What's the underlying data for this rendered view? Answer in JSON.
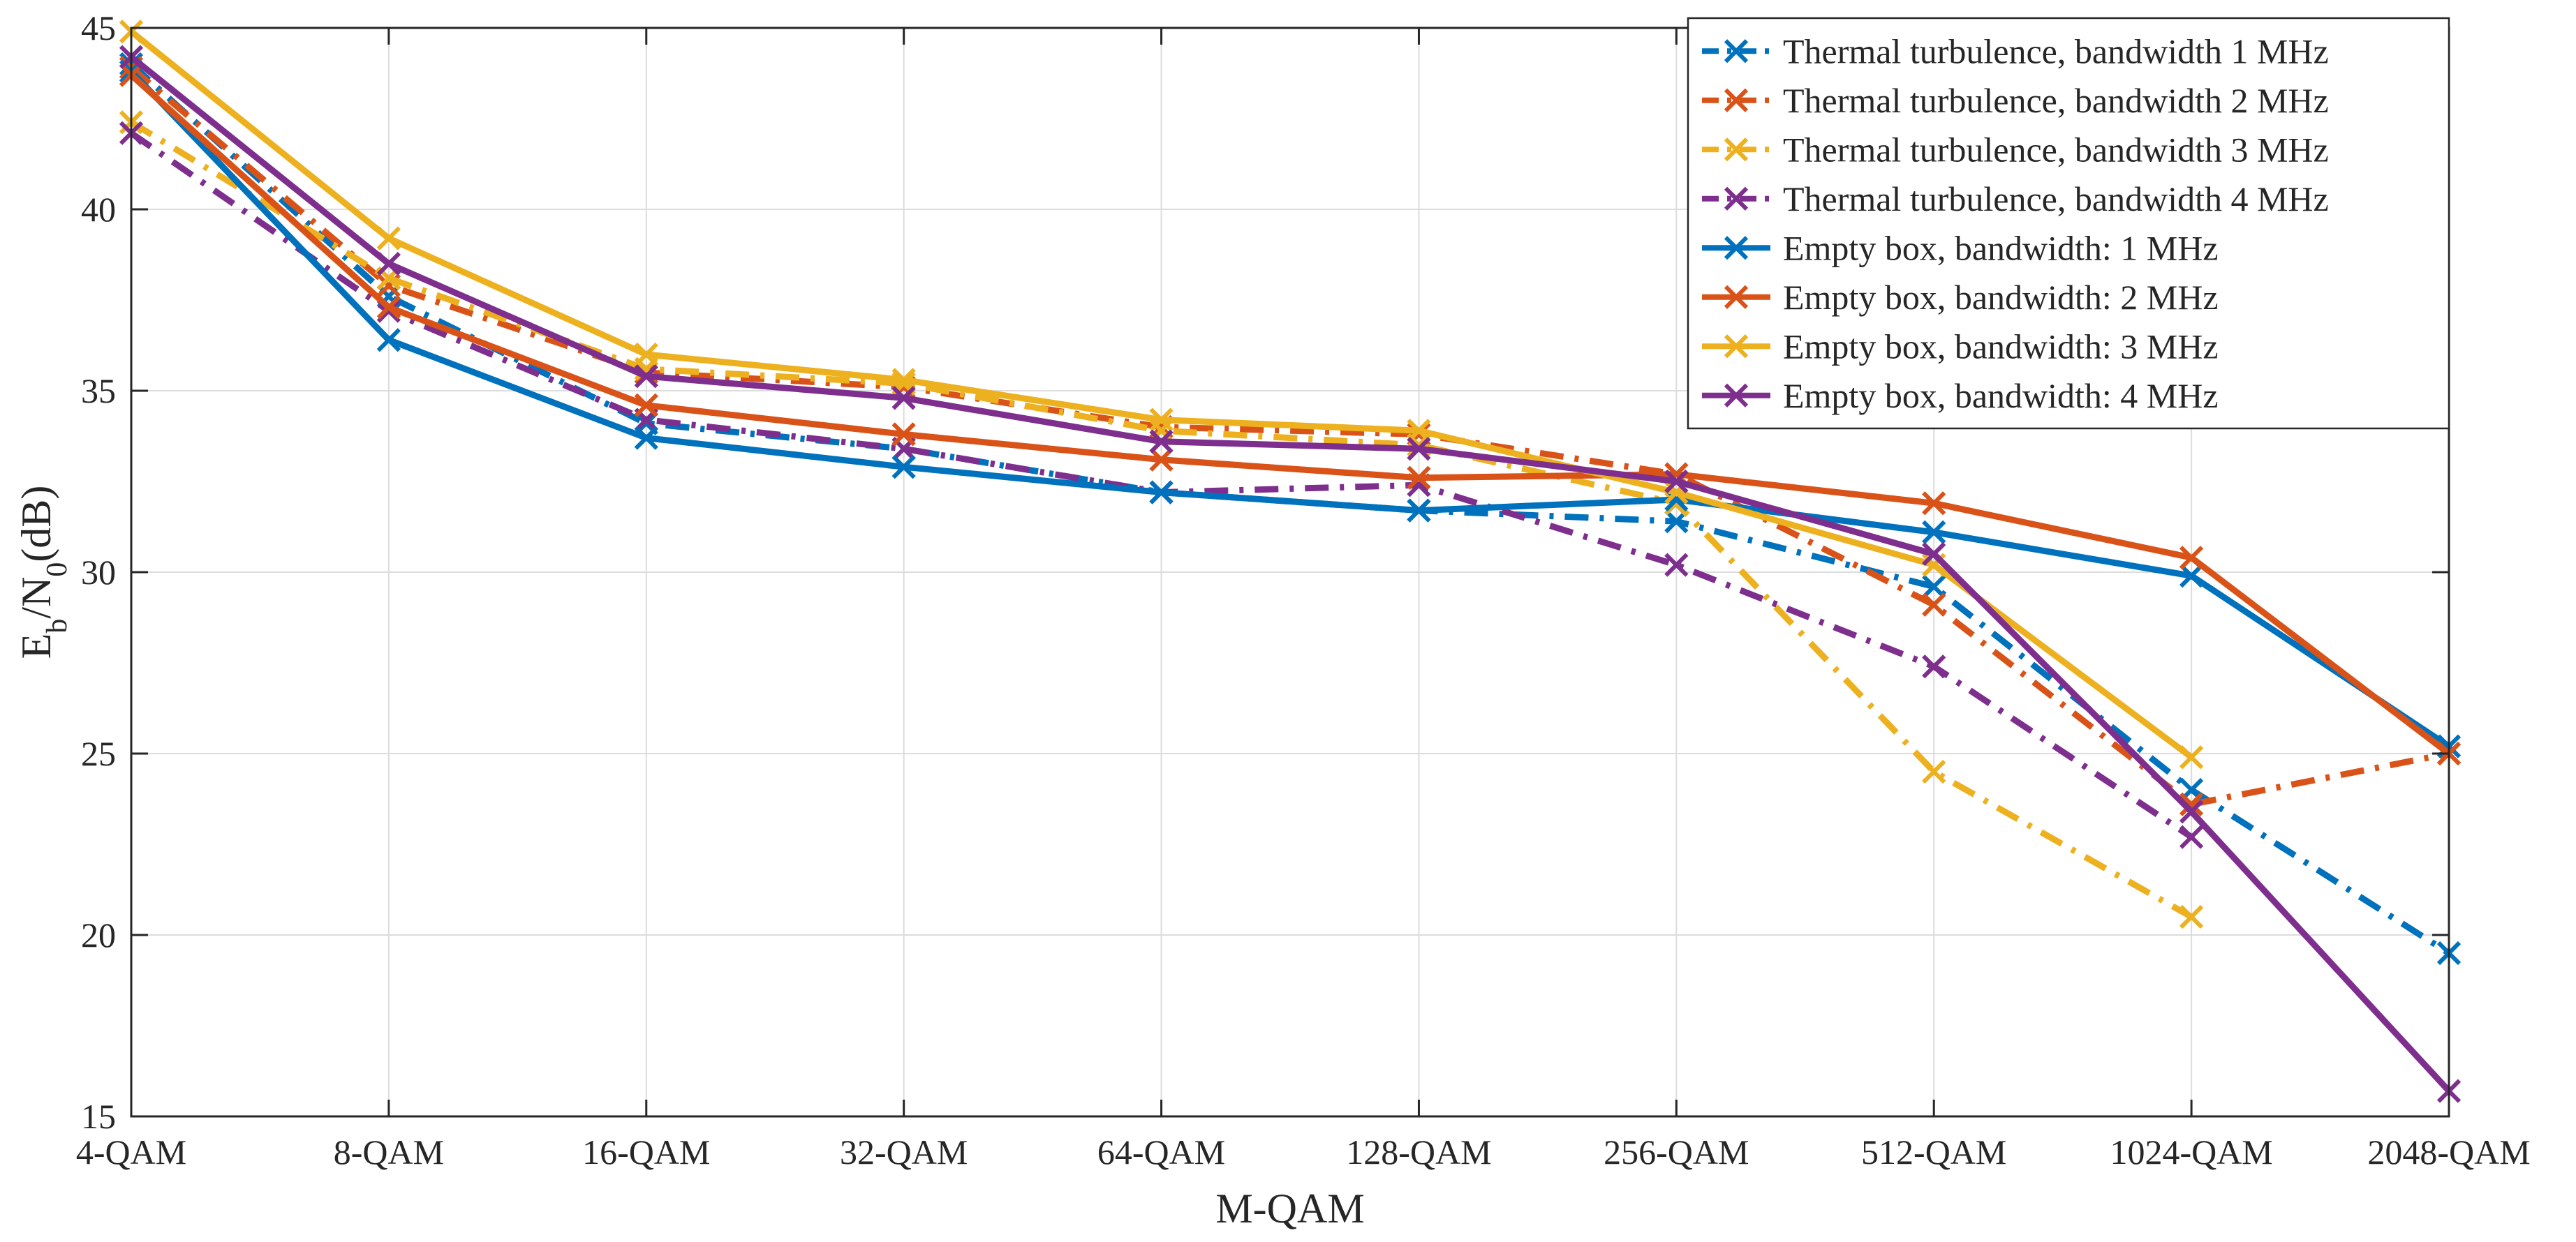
{
  "chart_data": {
    "type": "line",
    "title": "",
    "xlabel": "M-QAM",
    "ylabel": {
      "base": "E",
      "sub1": "b",
      "mid": "/N",
      "sub2": "0",
      "tail": "(dB)"
    },
    "categories": [
      "4-QAM",
      "8-QAM",
      "16-QAM",
      "32-QAM",
      "64-QAM",
      "128-QAM",
      "256-QAM",
      "512-QAM",
      "1024-QAM",
      "2048-QAM"
    ],
    "ylim": [
      15,
      45
    ],
    "yticks": [
      15,
      20,
      25,
      30,
      35,
      40,
      45
    ],
    "grid": true,
    "legend_position": "top-right",
    "series": [
      {
        "name": "Thermal turbulence, bandwidth 1 MHz",
        "color": "#0072BD",
        "style": "dashdot",
        "marker": "x",
        "values": [
          44.0,
          37.6,
          34.1,
          33.4,
          32.2,
          31.7,
          31.4,
          29.6,
          24.0,
          19.5
        ]
      },
      {
        "name": "Thermal turbulence, bandwidth 2 MHz",
        "color": "#D95319",
        "style": "dashdot",
        "marker": "x",
        "values": [
          43.9,
          37.9,
          35.5,
          35.1,
          34.0,
          33.8,
          32.7,
          29.1,
          23.6,
          25.0
        ]
      },
      {
        "name": "Thermal turbulence, bandwidth 3 MHz",
        "color": "#EDB120",
        "style": "dashdot",
        "marker": "x",
        "values": [
          42.4,
          38.1,
          35.6,
          35.2,
          33.9,
          33.5,
          31.9,
          24.5,
          20.5,
          null
        ]
      },
      {
        "name": "Thermal turbulence, bandwidth 4 MHz",
        "color": "#7E2F8E",
        "style": "dashdot",
        "marker": "x",
        "values": [
          42.1,
          37.2,
          34.2,
          33.4,
          32.2,
          32.4,
          30.2,
          27.4,
          22.7,
          null
        ]
      },
      {
        "name": "Empty box, bandwidth: 1 MHz",
        "color": "#0072BD",
        "style": "solid",
        "marker": "x",
        "values": [
          43.8,
          36.4,
          33.7,
          32.9,
          32.2,
          31.7,
          32.0,
          31.1,
          29.9,
          25.2
        ]
      },
      {
        "name": "Empty box, bandwidth: 2 MHz",
        "color": "#D95319",
        "style": "solid",
        "marker": "x",
        "values": [
          43.7,
          37.3,
          34.6,
          33.8,
          33.1,
          32.6,
          32.7,
          31.9,
          30.4,
          25.0
        ]
      },
      {
        "name": "Empty box, bandwidth: 3 MHz",
        "color": "#EDB120",
        "style": "solid",
        "marker": "x",
        "values": [
          44.9,
          39.2,
          36.0,
          35.3,
          34.2,
          33.9,
          32.2,
          30.2,
          24.9,
          null
        ]
      },
      {
        "name": "Empty box, bandwidth: 4 MHz",
        "color": "#7E2F8E",
        "style": "solid",
        "marker": "x",
        "values": [
          44.2,
          38.5,
          35.4,
          34.8,
          33.6,
          33.4,
          32.5,
          30.5,
          23.4,
          15.7
        ]
      }
    ]
  }
}
